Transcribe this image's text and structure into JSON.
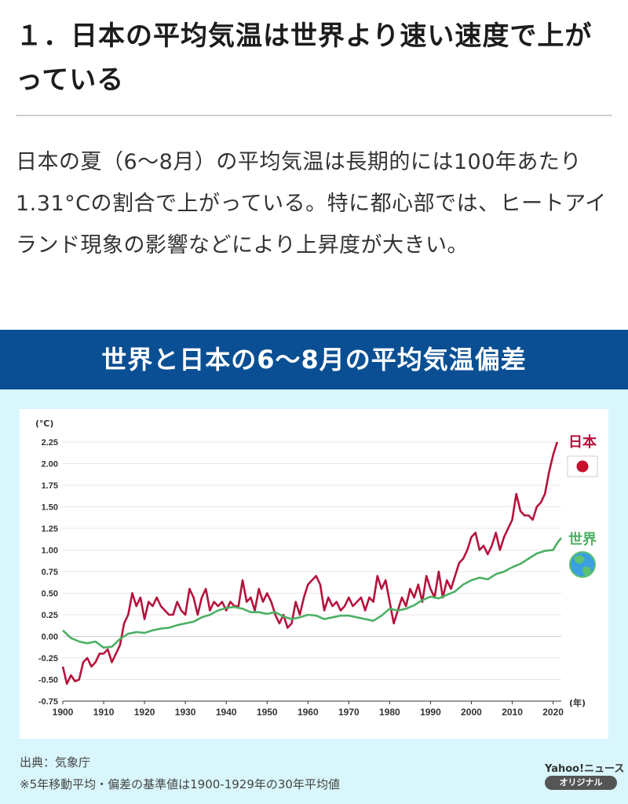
{
  "article": {
    "heading": "１．日本の平均気温は世界より速い速度で上がっている",
    "body": "日本の夏（6〜8月）の平均気温は長期的には100年あたり1.31°Cの割合で上がっている。特に都心部では、ヒートアイランド現象の影響などにより上昇度が大きい。"
  },
  "banner": {
    "title": "世界と日本の6〜8月の平均気温偏差"
  },
  "colors": {
    "japan": "#b5123c",
    "world": "#4cb065",
    "banner": "#0a4f93",
    "panel": "#d8f6fb"
  },
  "icons": {
    "japan_flag": "japan-flag-icon",
    "world_globe": "globe-icon"
  },
  "chart_data": {
    "type": "line",
    "title": "世界と日本の6〜8月の平均気温偏差",
    "ylabel": "(℃)",
    "xlabel": "(年)",
    "ylim": [
      -0.75,
      2.25
    ],
    "xlim": [
      1900,
      2022
    ],
    "yticks": [
      "2.25",
      "2.00",
      "1.75",
      "1.50",
      "1.25",
      "1.00",
      "0.75",
      "0.50",
      "0.25",
      "0.00",
      "-0.25",
      "-0.50",
      "-0.75"
    ],
    "xticks": [
      "1900",
      "1910",
      "1920",
      "1930",
      "1940",
      "1950",
      "1960",
      "1970",
      "1980",
      "1990",
      "2000",
      "2010",
      "2020"
    ],
    "grid": true,
    "series": [
      {
        "name": "日本",
        "color": "#b5123c",
        "points": [
          [
            1900,
            -0.35
          ],
          [
            1901,
            -0.55
          ],
          [
            1902,
            -0.45
          ],
          [
            1903,
            -0.52
          ],
          [
            1904,
            -0.5
          ],
          [
            1905,
            -0.3
          ],
          [
            1906,
            -0.25
          ],
          [
            1907,
            -0.35
          ],
          [
            1908,
            -0.3
          ],
          [
            1909,
            -0.2
          ],
          [
            1910,
            -0.2
          ],
          [
            1911,
            -0.15
          ],
          [
            1912,
            -0.3
          ],
          [
            1913,
            -0.2
          ],
          [
            1914,
            -0.1
          ],
          [
            1915,
            0.15
          ],
          [
            1916,
            0.25
          ],
          [
            1917,
            0.5
          ],
          [
            1918,
            0.35
          ],
          [
            1919,
            0.45
          ],
          [
            1920,
            0.2
          ],
          [
            1921,
            0.4
          ],
          [
            1922,
            0.35
          ],
          [
            1923,
            0.45
          ],
          [
            1924,
            0.35
          ],
          [
            1925,
            0.3
          ],
          [
            1926,
            0.25
          ],
          [
            1927,
            0.25
          ],
          [
            1928,
            0.4
          ],
          [
            1929,
            0.3
          ],
          [
            1930,
            0.25
          ],
          [
            1931,
            0.55
          ],
          [
            1932,
            0.45
          ],
          [
            1933,
            0.25
          ],
          [
            1934,
            0.45
          ],
          [
            1935,
            0.55
          ],
          [
            1936,
            0.3
          ],
          [
            1937,
            0.4
          ],
          [
            1938,
            0.35
          ],
          [
            1939,
            0.4
          ],
          [
            1940,
            0.3
          ],
          [
            1941,
            0.4
          ],
          [
            1942,
            0.35
          ],
          [
            1943,
            0.35
          ],
          [
            1944,
            0.65
          ],
          [
            1945,
            0.4
          ],
          [
            1946,
            0.45
          ],
          [
            1947,
            0.3
          ],
          [
            1948,
            0.55
          ],
          [
            1949,
            0.4
          ],
          [
            1950,
            0.5
          ],
          [
            1951,
            0.4
          ],
          [
            1952,
            0.25
          ],
          [
            1953,
            0.15
          ],
          [
            1954,
            0.25
          ],
          [
            1955,
            0.1
          ],
          [
            1956,
            0.15
          ],
          [
            1957,
            0.4
          ],
          [
            1958,
            0.25
          ],
          [
            1959,
            0.45
          ],
          [
            1960,
            0.6
          ],
          [
            1961,
            0.65
          ],
          [
            1962,
            0.7
          ],
          [
            1963,
            0.6
          ],
          [
            1964,
            0.3
          ],
          [
            1965,
            0.45
          ],
          [
            1966,
            0.35
          ],
          [
            1967,
            0.4
          ],
          [
            1968,
            0.3
          ],
          [
            1969,
            0.35
          ],
          [
            1970,
            0.45
          ],
          [
            1971,
            0.35
          ],
          [
            1972,
            0.4
          ],
          [
            1973,
            0.45
          ],
          [
            1974,
            0.3
          ],
          [
            1975,
            0.45
          ],
          [
            1976,
            0.4
          ],
          [
            1977,
            0.7
          ],
          [
            1978,
            0.55
          ],
          [
            1979,
            0.65
          ],
          [
            1980,
            0.4
          ],
          [
            1981,
            0.15
          ],
          [
            1982,
            0.3
          ],
          [
            1983,
            0.45
          ],
          [
            1984,
            0.35
          ],
          [
            1985,
            0.55
          ],
          [
            1986,
            0.45
          ],
          [
            1987,
            0.6
          ],
          [
            1988,
            0.4
          ],
          [
            1989,
            0.7
          ],
          [
            1990,
            0.55
          ],
          [
            1991,
            0.45
          ],
          [
            1992,
            0.75
          ],
          [
            1993,
            0.45
          ],
          [
            1994,
            0.65
          ],
          [
            1995,
            0.55
          ],
          [
            1996,
            0.7
          ],
          [
            1997,
            0.85
          ],
          [
            1998,
            0.9
          ],
          [
            1999,
            1.0
          ],
          [
            2000,
            1.15
          ],
          [
            2001,
            1.2
          ],
          [
            2002,
            1.0
          ],
          [
            2003,
            1.05
          ],
          [
            2004,
            0.95
          ],
          [
            2005,
            1.05
          ],
          [
            2006,
            1.2
          ],
          [
            2007,
            1.0
          ],
          [
            2008,
            1.15
          ],
          [
            2009,
            1.25
          ],
          [
            2010,
            1.35
          ],
          [
            2011,
            1.65
          ],
          [
            2012,
            1.45
          ],
          [
            2013,
            1.4
          ],
          [
            2014,
            1.4
          ],
          [
            2015,
            1.35
          ],
          [
            2016,
            1.5
          ],
          [
            2017,
            1.55
          ],
          [
            2018,
            1.65
          ],
          [
            2019,
            1.9
          ],
          [
            2020,
            2.1
          ],
          [
            2021,
            2.25
          ]
        ]
      },
      {
        "name": "世界",
        "color": "#4cb065",
        "points": [
          [
            1900,
            0.07
          ],
          [
            1902,
            -0.02
          ],
          [
            1904,
            -0.06
          ],
          [
            1906,
            -0.08
          ],
          [
            1908,
            -0.06
          ],
          [
            1910,
            -0.13
          ],
          [
            1912,
            -0.12
          ],
          [
            1914,
            -0.03
          ],
          [
            1916,
            0.03
          ],
          [
            1918,
            0.05
          ],
          [
            1920,
            0.04
          ],
          [
            1922,
            0.07
          ],
          [
            1924,
            0.09
          ],
          [
            1926,
            0.1
          ],
          [
            1928,
            0.13
          ],
          [
            1930,
            0.15
          ],
          [
            1932,
            0.17
          ],
          [
            1934,
            0.22
          ],
          [
            1936,
            0.25
          ],
          [
            1938,
            0.3
          ],
          [
            1940,
            0.33
          ],
          [
            1942,
            0.34
          ],
          [
            1944,
            0.32
          ],
          [
            1946,
            0.28
          ],
          [
            1948,
            0.28
          ],
          [
            1950,
            0.26
          ],
          [
            1952,
            0.28
          ],
          [
            1954,
            0.23
          ],
          [
            1956,
            0.2
          ],
          [
            1958,
            0.22
          ],
          [
            1960,
            0.25
          ],
          [
            1962,
            0.24
          ],
          [
            1964,
            0.2
          ],
          [
            1966,
            0.22
          ],
          [
            1968,
            0.24
          ],
          [
            1970,
            0.24
          ],
          [
            1972,
            0.22
          ],
          [
            1974,
            0.2
          ],
          [
            1976,
            0.18
          ],
          [
            1978,
            0.24
          ],
          [
            1980,
            0.32
          ],
          [
            1982,
            0.3
          ],
          [
            1984,
            0.32
          ],
          [
            1986,
            0.36
          ],
          [
            1988,
            0.42
          ],
          [
            1990,
            0.46
          ],
          [
            1992,
            0.44
          ],
          [
            1994,
            0.48
          ],
          [
            1996,
            0.52
          ],
          [
            1998,
            0.6
          ],
          [
            2000,
            0.65
          ],
          [
            2002,
            0.68
          ],
          [
            2004,
            0.66
          ],
          [
            2006,
            0.72
          ],
          [
            2008,
            0.75
          ],
          [
            2010,
            0.8
          ],
          [
            2012,
            0.84
          ],
          [
            2014,
            0.9
          ],
          [
            2016,
            0.96
          ],
          [
            2018,
            0.99
          ],
          [
            2020,
            1.0
          ],
          [
            2021,
            1.08
          ],
          [
            2022,
            1.14
          ]
        ]
      }
    ]
  },
  "footer": {
    "source": "出典：気象庁",
    "note": "※5年移動平均・偏差の基準値は1900-1929年の30年平均値",
    "brand": "Yahoo!ニュース",
    "badge": "オリジナル"
  }
}
